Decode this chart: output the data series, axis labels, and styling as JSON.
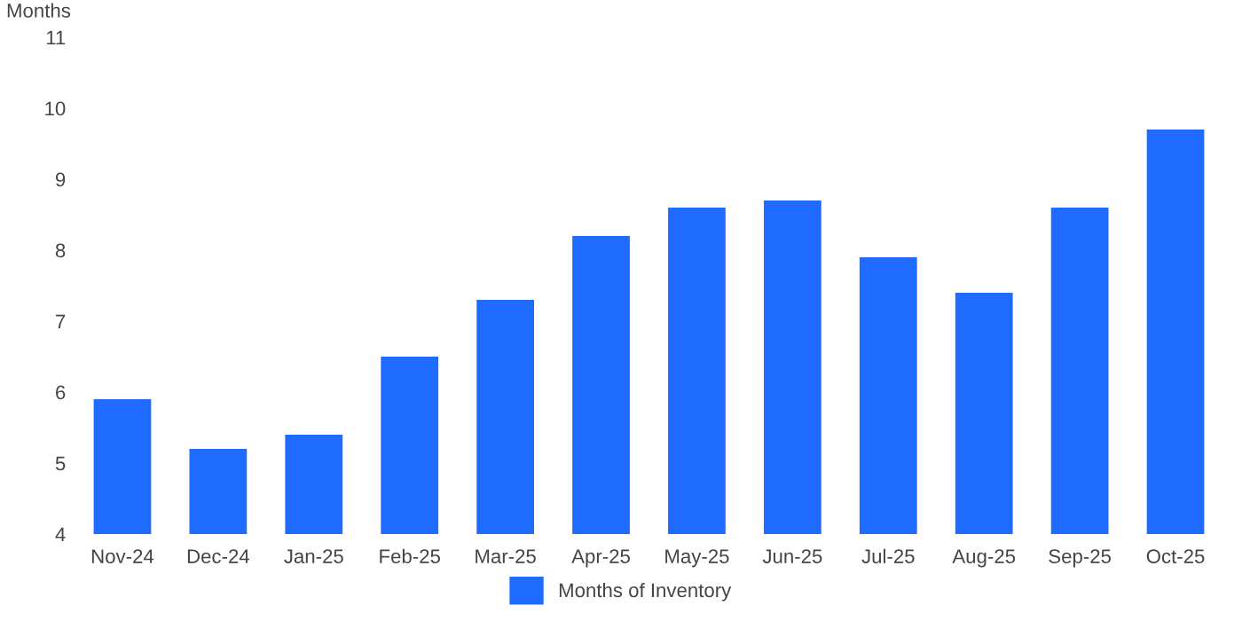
{
  "chart_data": {
    "type": "bar",
    "ylabel": "Months",
    "categories": [
      "Nov-24",
      "Dec-24",
      "Jan-25",
      "Feb-25",
      "Mar-25",
      "Apr-25",
      "May-25",
      "Jun-25",
      "Jul-25",
      "Aug-25",
      "Sep-25",
      "Oct-25"
    ],
    "series": [
      {
        "name": "Months of Inventory",
        "color": "#1f6bff",
        "values": [
          5.9,
          5.2,
          5.4,
          6.5,
          7.3,
          8.2,
          8.6,
          8.7,
          7.9,
          7.4,
          8.6,
          9.7
        ]
      }
    ],
    "ylim": [
      4,
      11
    ],
    "yticks": [
      4,
      5,
      6,
      7,
      8,
      9,
      10,
      11
    ],
    "grid": false,
    "legend": "bottom"
  }
}
